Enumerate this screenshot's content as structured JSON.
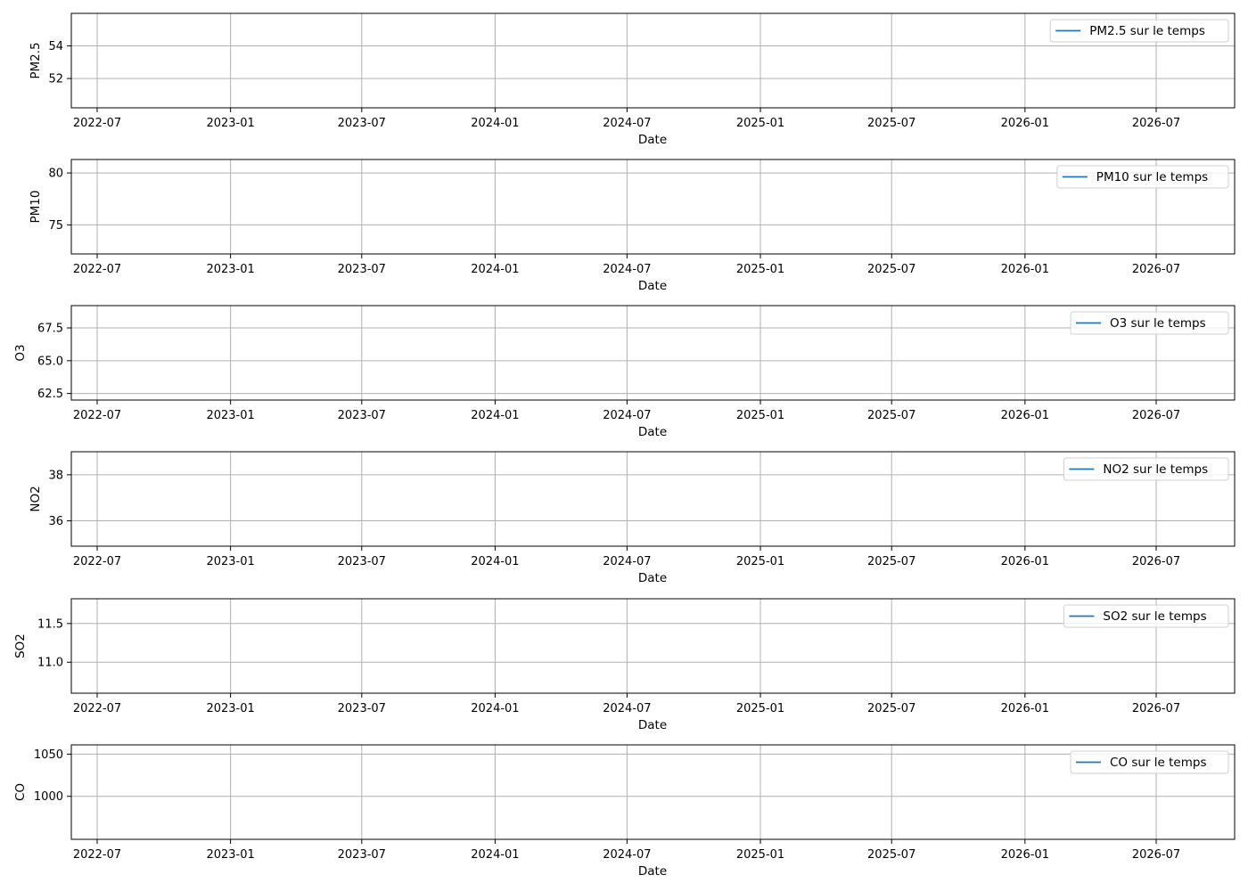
{
  "chart_data": [
    {
      "type": "line",
      "x_ticks": [
        "2022-07",
        "2023-01",
        "2023-07",
        "2024-01",
        "2024-07",
        "2025-01",
        "2025-07",
        "2026-01",
        "2026-07"
      ],
      "xlabel": "Date",
      "ylabel": "PM2.5",
      "y_ticks": [
        "52",
        "54"
      ],
      "ylim": [
        50.2,
        56.0
      ],
      "grid": true,
      "legend_placement": "top-right",
      "series": [
        {
          "name": "PM2.5 sur le temps",
          "color": "#1f77b4",
          "x": [],
          "y": []
        }
      ]
    },
    {
      "type": "line",
      "x_ticks": [
        "2022-07",
        "2023-01",
        "2023-07",
        "2024-01",
        "2024-07",
        "2025-01",
        "2025-07",
        "2026-01",
        "2026-07"
      ],
      "xlabel": "Date",
      "ylabel": "PM10",
      "y_ticks": [
        "75",
        "80"
      ],
      "ylim": [
        72.2,
        81.3
      ],
      "grid": true,
      "legend_placement": "top-right",
      "series": [
        {
          "name": "PM10 sur le temps",
          "color": "#1f77b4",
          "x": [],
          "y": []
        }
      ]
    },
    {
      "type": "line",
      "x_ticks": [
        "2022-07",
        "2023-01",
        "2023-07",
        "2024-01",
        "2024-07",
        "2025-01",
        "2025-07",
        "2026-01",
        "2026-07"
      ],
      "xlabel": "Date",
      "ylabel": "O3",
      "y_ticks": [
        "62.5",
        "65.0",
        "67.5"
      ],
      "ylim": [
        62.0,
        69.2
      ],
      "grid": true,
      "legend_placement": "top-right",
      "series": [
        {
          "name": "O3 sur le temps",
          "color": "#1f77b4",
          "x": [],
          "y": []
        }
      ]
    },
    {
      "type": "line",
      "x_ticks": [
        "2022-07",
        "2023-01",
        "2023-07",
        "2024-01",
        "2024-07",
        "2025-01",
        "2025-07",
        "2026-01",
        "2026-07"
      ],
      "xlabel": "Date",
      "ylabel": "NO2",
      "y_ticks": [
        "36",
        "38"
      ],
      "ylim": [
        34.9,
        39.0
      ],
      "grid": true,
      "legend_placement": "top-right",
      "series": [
        {
          "name": "NO2 sur le temps",
          "color": "#1f77b4",
          "x": [],
          "y": []
        }
      ]
    },
    {
      "type": "line",
      "x_ticks": [
        "2022-07",
        "2023-01",
        "2023-07",
        "2024-01",
        "2024-07",
        "2025-01",
        "2025-07",
        "2026-01",
        "2026-07"
      ],
      "xlabel": "Date",
      "ylabel": "SO2",
      "y_ticks": [
        "11.0",
        "11.5"
      ],
      "ylim": [
        10.6,
        11.82
      ],
      "grid": true,
      "legend_placement": "top-right",
      "series": [
        {
          "name": "SO2 sur le temps",
          "color": "#1f77b4",
          "x": [],
          "y": []
        }
      ]
    },
    {
      "type": "line",
      "x_ticks": [
        "2022-07",
        "2023-01",
        "2023-07",
        "2024-01",
        "2024-07",
        "2025-01",
        "2025-07",
        "2026-01",
        "2026-07"
      ],
      "xlabel": "Date",
      "ylabel": "CO",
      "y_ticks": [
        "1000",
        "1050"
      ],
      "ylim": [
        949,
        1061
      ],
      "grid": true,
      "legend_placement": "top-right",
      "series": [
        {
          "name": "CO sur le temps",
          "color": "#1f77b4",
          "x": [],
          "y": []
        }
      ]
    }
  ]
}
